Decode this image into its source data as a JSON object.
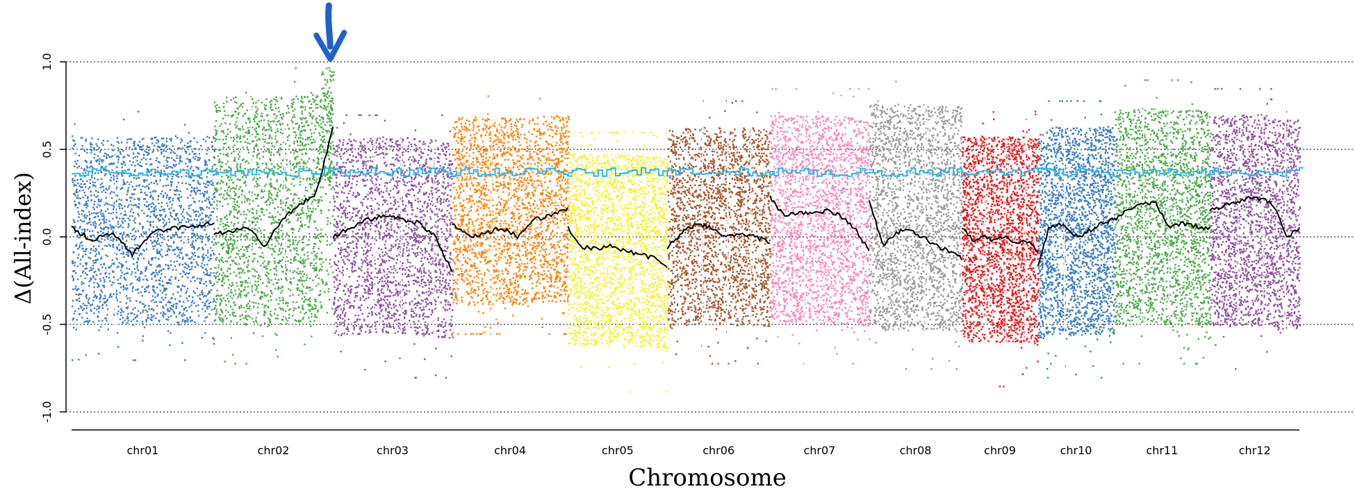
{
  "chart_data": {
    "type": "scatter",
    "title": "",
    "xlabel": "Chromosome",
    "ylabel": "Δ(All-index)",
    "ylim": [
      -1.0,
      1.0
    ],
    "yticks": [
      "1.0",
      "0.5",
      "0.0",
      "-0.5",
      "-1.0"
    ],
    "reference_lines": [
      1.0,
      0.5,
      0.0,
      -0.5,
      -1.0
    ],
    "threshold_line_color": "#29b6e8",
    "threshold_value_approx": 0.37,
    "sliding_window_color": "#000000",
    "annotation": {
      "type": "arrow",
      "target": "chr02",
      "color": "#1f5fcf",
      "y": 1.0
    },
    "chromosomes": [
      {
        "name": "chr01",
        "color": "#3a7dbf",
        "size": 43,
        "ymax": 0.72,
        "ymin": -0.7,
        "window": [
          0.05,
          -0.02,
          0.02,
          -0.1,
          0.03,
          0.05,
          0.06,
          0.08
        ]
      },
      {
        "name": "chr02",
        "color": "#4aaa46",
        "size": 36,
        "ymax": 1.0,
        "ymin": -0.72,
        "window": [
          0.02,
          0.03,
          0.05,
          -0.05,
          0.1,
          0.18,
          0.25,
          0.62
        ]
      },
      {
        "name": "chr03",
        "color": "#9050a0",
        "size": 36,
        "ymax": 0.7,
        "ymin": -0.8,
        "window": [
          0.0,
          0.05,
          0.1,
          0.12,
          0.1,
          0.08,
          0.0,
          -0.2
        ]
      },
      {
        "name": "chr04",
        "color": "#ff8000",
        "size": 35,
        "ymax": 0.85,
        "ymin": -0.55,
        "window": [
          0.08,
          0.0,
          0.02,
          0.05,
          0.0,
          0.1,
          0.12,
          0.16
        ]
      },
      {
        "name": "chr05",
        "color": "#f8f22a",
        "size": 30,
        "ymax": 0.6,
        "ymin": -0.88,
        "window": [
          0.05,
          -0.06,
          -0.07,
          -0.05,
          -0.08,
          -0.1,
          -0.12,
          -0.18
        ]
      },
      {
        "name": "chr06",
        "color": "#a4552a",
        "size": 31,
        "ymax": 0.78,
        "ymin": -0.72,
        "window": [
          -0.06,
          0.02,
          0.08,
          0.05,
          0.0,
          0.02,
          0.0,
          -0.03
        ]
      },
      {
        "name": "chr07",
        "color": "#f783bf",
        "size": 30,
        "ymax": 0.85,
        "ymin": -0.72,
        "window": [
          0.23,
          0.12,
          0.14,
          0.13,
          0.15,
          0.12,
          0.05,
          -0.08
        ]
      },
      {
        "name": "chr08",
        "color": "#999999",
        "size": 28,
        "ymax": 0.95,
        "ymin": -0.75,
        "window": [
          0.22,
          -0.05,
          0.02,
          0.05,
          0.0,
          -0.05,
          -0.08,
          -0.12
        ]
      },
      {
        "name": "chr09",
        "color": "#e41a1c",
        "size": 23,
        "ymax": 0.72,
        "ymin": -0.85,
        "window": [
          0.05,
          -0.02,
          0.0,
          -0.02,
          0.0,
          -0.03,
          -0.02,
          -0.08
        ]
      },
      {
        "name": "chr10",
        "color": "#3a7dbf",
        "size": 23,
        "ymax": 0.78,
        "ymin": -0.8,
        "window": [
          -0.18,
          0.05,
          0.08,
          0.02,
          0.0,
          0.05,
          0.08,
          0.1
        ]
      },
      {
        "name": "chr11",
        "color": "#4aaa46",
        "size": 29,
        "ymax": 0.9,
        "ymin": -0.72,
        "window": [
          0.1,
          0.15,
          0.18,
          0.2,
          0.05,
          0.08,
          0.06,
          0.05
        ]
      },
      {
        "name": "chr12",
        "color": "#9050a0",
        "size": 27,
        "ymax": 0.85,
        "ymin": -0.75,
        "window": [
          0.15,
          0.18,
          0.2,
          0.22,
          0.22,
          0.18,
          0.0,
          0.05
        ]
      }
    ]
  }
}
